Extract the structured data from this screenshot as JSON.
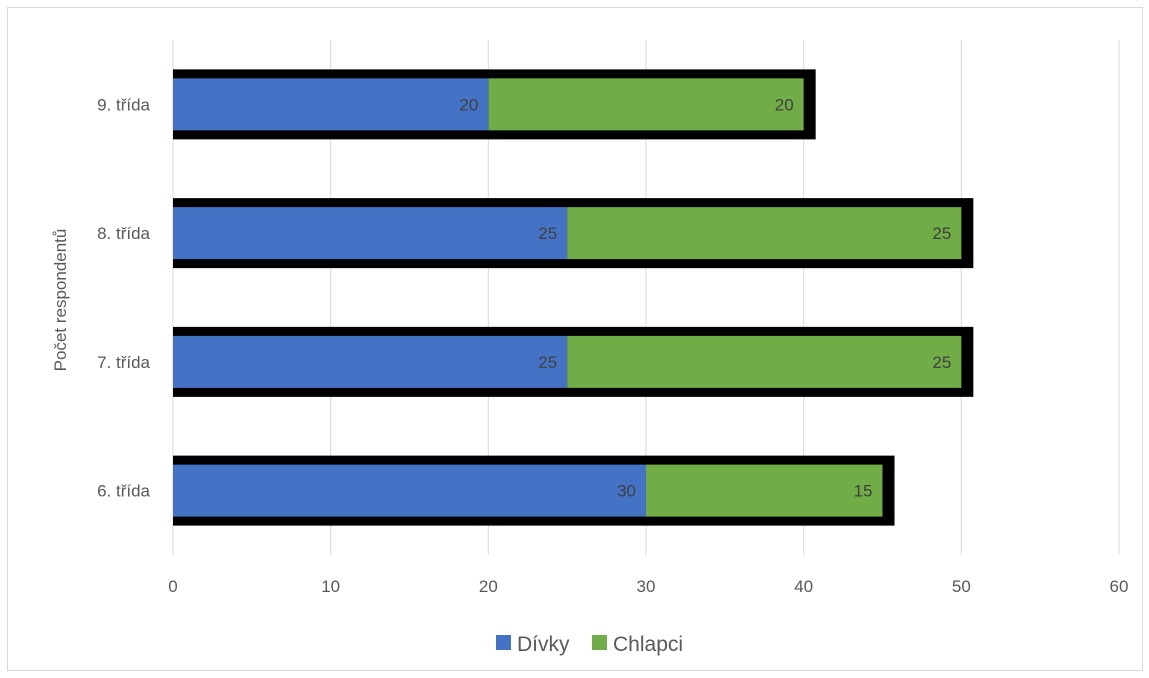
{
  "chart_data": {
    "type": "bar",
    "orientation": "horizontal",
    "stacked": true,
    "categories": [
      "6. třída",
      "7. třída",
      "8. třída",
      "9. třída"
    ],
    "series": [
      {
        "name": "Dívky",
        "values": [
          30,
          25,
          25,
          20
        ],
        "color": "#4472C4"
      },
      {
        "name": "Chlapci",
        "values": [
          15,
          25,
          25,
          20
        ],
        "color": "#70AD47"
      }
    ],
    "ylabel": "Počet respondentů",
    "xlabel": "",
    "xlim": [
      0,
      60
    ],
    "xticks": [
      0,
      10,
      20,
      30,
      40,
      50,
      60
    ],
    "grid": "vertical",
    "legend": "bottom",
    "bar_outline_color": "#000000"
  }
}
